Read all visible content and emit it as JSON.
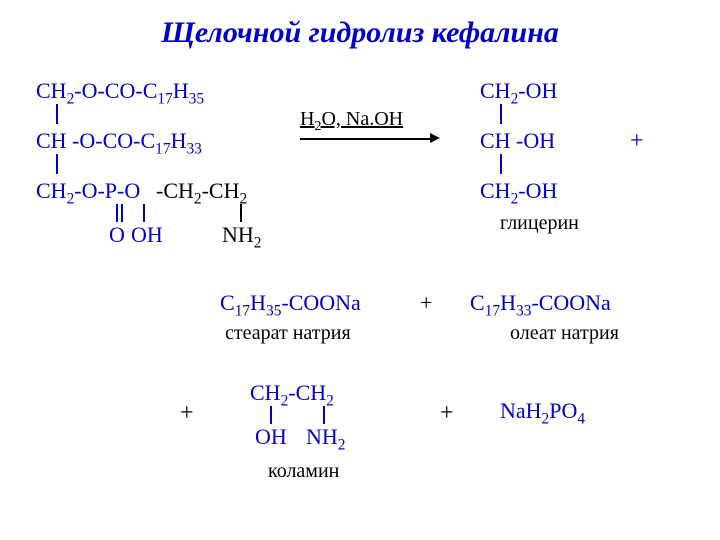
{
  "title": "Щелочной гидролиз кефалина",
  "colors": {
    "blue": "#0000c8",
    "black": "#000000",
    "bg": "#ffffff"
  },
  "fonts": {
    "title_size": 30,
    "chem_size": 22,
    "label_size": 20
  },
  "reagent": "H₂O, Na.OH",
  "reactant": {
    "line1": "CH₂-O-CO-C₁₇H₃₅",
    "line2": "CH -O-CO-C₁₇H₃₃",
    "line3_left": "CH₂-O-P-O",
    "line3_eth": "-CH₂-CH₂",
    "O": "O",
    "OH": "OH",
    "NH2": "NH₂"
  },
  "glycerol": {
    "line1": "CH₂-OH",
    "line2": "CH -OH",
    "line3": "CH₂-OH",
    "label": "глицерин"
  },
  "plus": "+",
  "soap1": {
    "formula": "C₁₇H₃₅-COONa",
    "label": "стеарат натрия"
  },
  "soap2": {
    "formula": "C₁₇H₃₃-COONa",
    "label": "олеат натрия"
  },
  "colamine": {
    "top": "CH₂-CH₂",
    "oh": "OH",
    "nh2": "NH₂",
    "label": "коламин"
  },
  "phosphate": "NaH₂PO₄"
}
